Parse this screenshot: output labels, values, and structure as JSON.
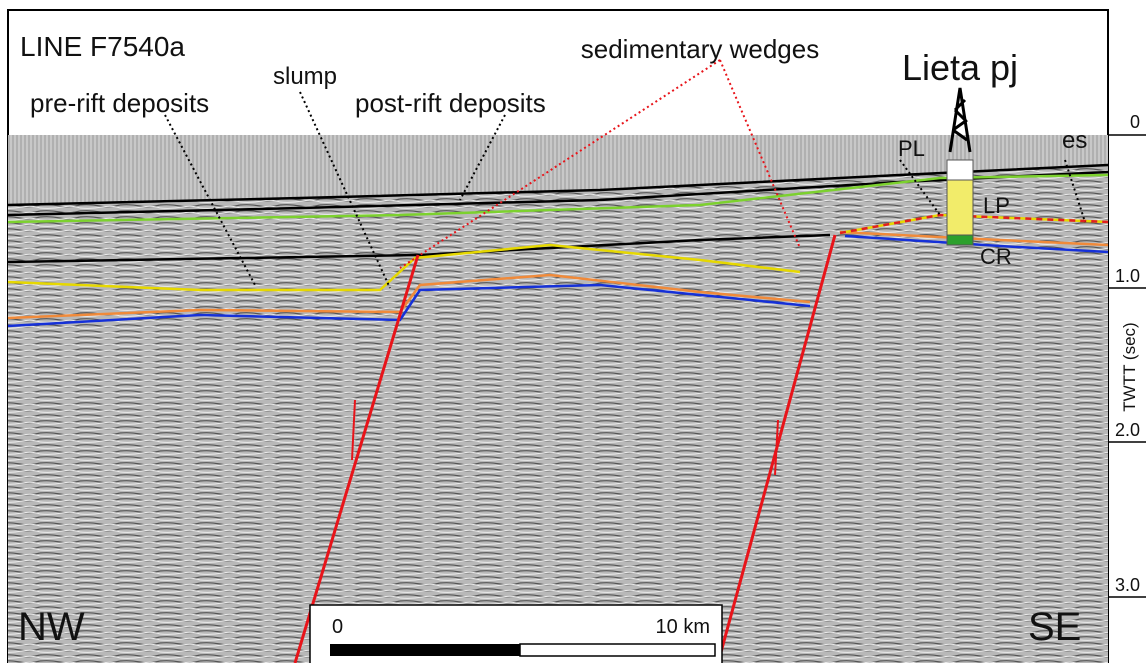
{
  "section": {
    "line_name": "LINE F7540a",
    "well": "Lieta pj",
    "labels": {
      "sedimentary_wedges": "sedimentary wedges",
      "slump": "slump",
      "pre_rift": "pre-rift deposits",
      "post_rift": "post-rift deposits"
    },
    "horizons": {
      "pl": "PL",
      "es": "es",
      "lp": "LP",
      "cr": "CR"
    },
    "directions": {
      "left": "NW",
      "right": "SE"
    },
    "axis": {
      "label": "TWTT (sec)",
      "ticks": [
        "0",
        "1.0",
        "2.0",
        "3.0"
      ]
    },
    "scale_bar": {
      "start": "0",
      "end": "10 km"
    }
  }
}
